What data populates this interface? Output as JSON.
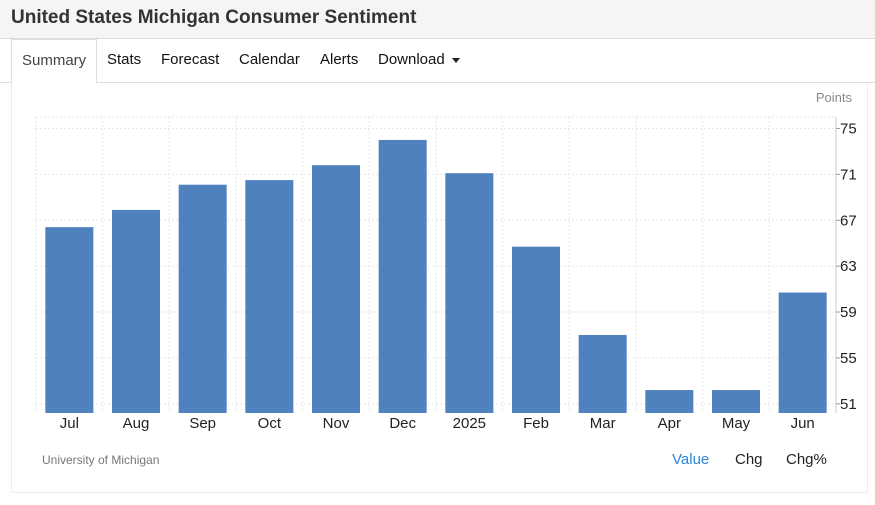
{
  "header": {
    "title": "United States Michigan Consumer Sentiment"
  },
  "tabs": [
    {
      "label": "Summary"
    },
    {
      "label": "Stats"
    },
    {
      "label": "Forecast"
    },
    {
      "label": "Calendar"
    },
    {
      "label": "Alerts"
    },
    {
      "label": "Download"
    }
  ],
  "footer": {
    "source": "University of Michigan",
    "toggles": [
      "Value",
      "Chg",
      "Chg%"
    ],
    "active_toggle": "Value"
  },
  "colors": {
    "bar": "#4e81bd",
    "active_toggle": "#2b88d9"
  },
  "chart_data": {
    "type": "bar",
    "unit_label": "Points",
    "categories": [
      "Jul",
      "Aug",
      "Sep",
      "Oct",
      "Nov",
      "Dec",
      "2025",
      "Feb",
      "Mar",
      "Apr",
      "May",
      "Jun"
    ],
    "values": [
      66.4,
      67.9,
      70.1,
      70.5,
      71.8,
      74.0,
      71.1,
      64.7,
      57.0,
      52.2,
      52.2,
      60.7
    ],
    "ylim": [
      50.2,
      76
    ],
    "yticks": [
      51,
      55,
      59,
      63,
      67,
      71,
      75
    ],
    "grid": true,
    "y_axis_side": "right"
  }
}
